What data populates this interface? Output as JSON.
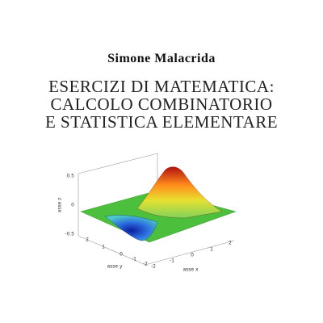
{
  "author": "Simone Malacrida",
  "title": {
    "lines": [
      "Esercizi di matematica:",
      "calcolo combinatorio",
      "e statistica elementare"
    ]
  },
  "figure": {
    "z_axis": {
      "label": "asse z",
      "ticks": [
        "0.5",
        "0",
        "-0.5"
      ]
    },
    "y_axis": {
      "label": "asse y",
      "ticks": [
        "2",
        "1",
        "0",
        "-1",
        "-2"
      ]
    },
    "x_axis": {
      "label": "asse x",
      "ticks": [
        "-2",
        "-1",
        "0",
        "1",
        "2"
      ]
    }
  }
}
